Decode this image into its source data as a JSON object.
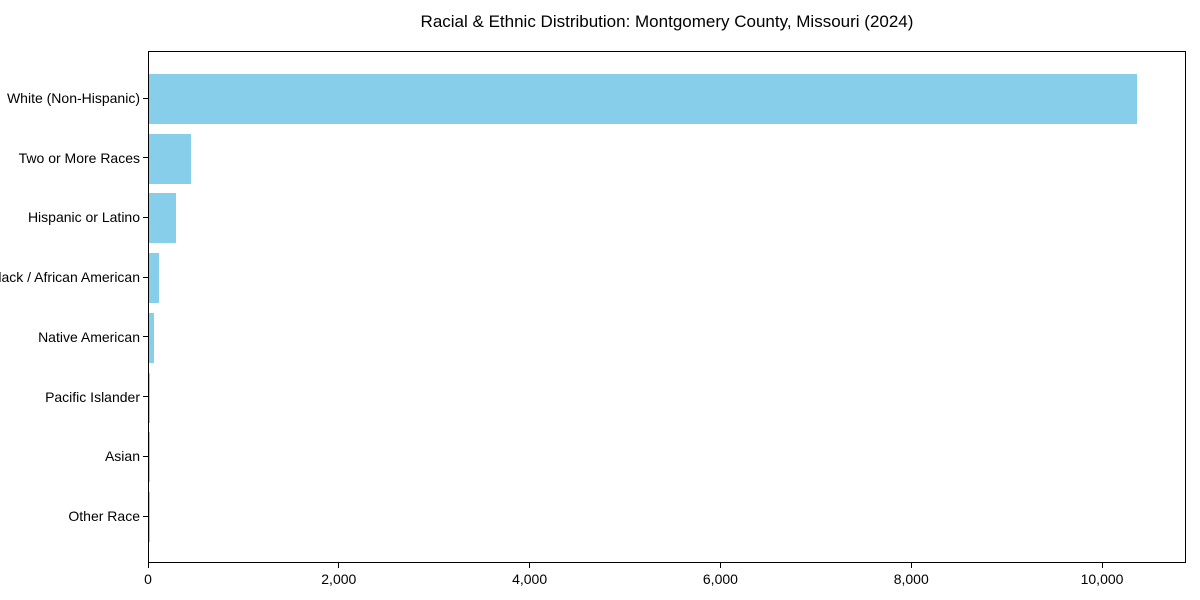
{
  "chart_data": {
    "type": "bar",
    "orientation": "horizontal",
    "title": "Racial & Ethnic Distribution: Montgomery County, Missouri (2024)",
    "categories": [
      "White (Non-Hispanic)",
      "Two or More Races",
      "Hispanic or Latino",
      "Black / African American",
      "Native American",
      "Pacific Islander",
      "Asian",
      "Other Race"
    ],
    "values": [
      10360,
      440,
      280,
      110,
      55,
      10,
      5,
      2
    ],
    "xlabel": "",
    "ylabel": "",
    "xlim": [
      0,
      10880
    ],
    "x_ticks": [
      0,
      2000,
      4000,
      6000,
      8000,
      10000
    ],
    "x_tick_labels": [
      "0",
      "2,000",
      "4,000",
      "6,000",
      "8,000",
      "10,000"
    ],
    "grid": false,
    "legend": null,
    "bar_color": "#87ceeb",
    "background_color": "#ffffff",
    "axis_color": "#000000",
    "text_color": "#000000"
  }
}
